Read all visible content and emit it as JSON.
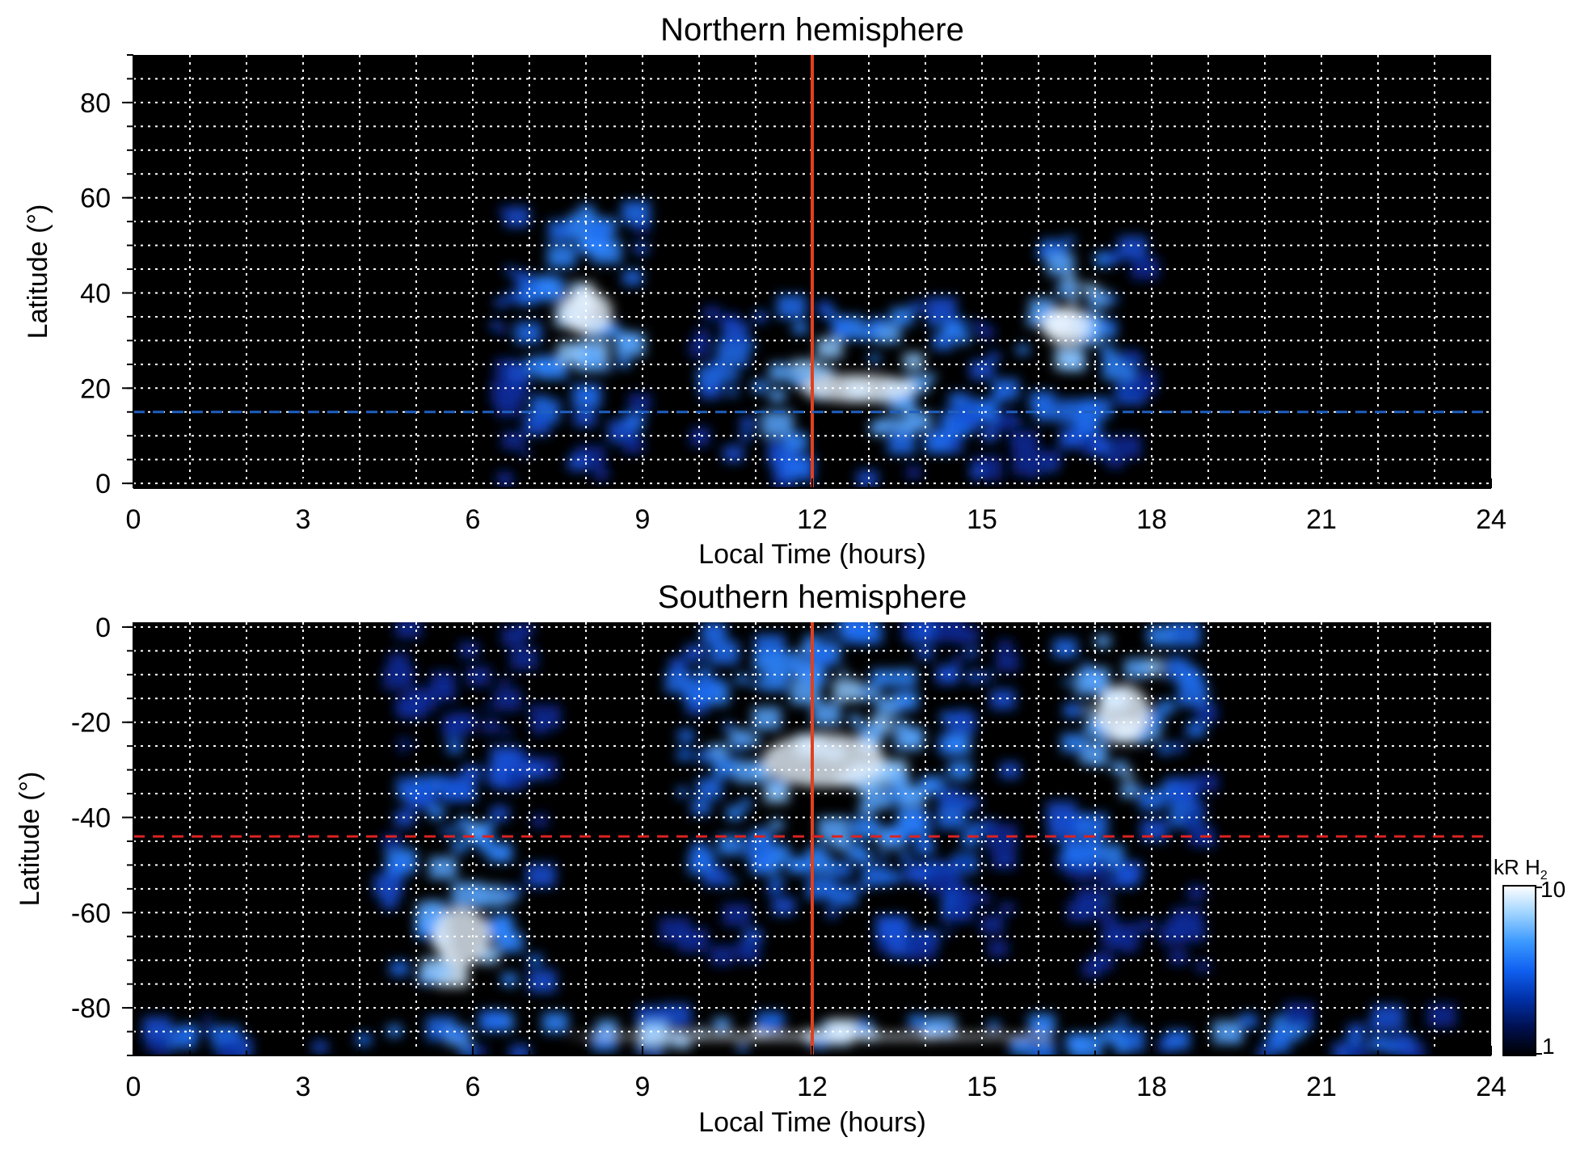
{
  "chart_data": [
    {
      "type": "heatmap",
      "title": "Northern hemisphere",
      "xlabel": "Local Time (hours)",
      "ylabel": "Latitude (°)",
      "xlim": [
        0,
        24
      ],
      "ylim": [
        -1,
        90
      ],
      "xticks": [
        "0",
        "3",
        "6",
        "9",
        "12",
        "15",
        "18",
        "21",
        "24"
      ],
      "yticks": [
        "0",
        "20",
        "40",
        "60",
        "80"
      ],
      "grid": true,
      "reference_lines": [
        {
          "orientation": "vertical",
          "value": 12,
          "color": "#e2401c",
          "style": "solid"
        },
        {
          "orientation": "horizontal",
          "value": 15,
          "color": "#1f5fbf",
          "style": "dashed"
        }
      ],
      "emission_regions": [
        {
          "x_range": [
            6.4,
            9.0
          ],
          "y_range": [
            0,
            57
          ],
          "peak": {
            "x": 8.0,
            "y": 36
          }
        },
        {
          "x_range": [
            10.0,
            15.6
          ],
          "y_range": [
            0,
            37
          ],
          "peak": {
            "x": 12.8,
            "y": 20
          }
        },
        {
          "x_range": [
            15.7,
            18.0
          ],
          "y_range": [
            0,
            51
          ],
          "peak": {
            "x": 16.5,
            "y": 33
          }
        }
      ]
    },
    {
      "type": "heatmap",
      "title": "Southern hemisphere",
      "xlabel": "Local Time (hours)",
      "ylabel": "Latitude (°)",
      "xlim": [
        0,
        24
      ],
      "ylim": [
        -90,
        1
      ],
      "xticks": [
        "0",
        "3",
        "6",
        "9",
        "12",
        "15",
        "18",
        "21",
        "24"
      ],
      "yticks": [
        "0",
        "-20",
        "-40",
        "-60",
        "-80"
      ],
      "grid": true,
      "reference_lines": [
        {
          "orientation": "vertical",
          "value": 12,
          "color": "#e2401c",
          "style": "solid"
        },
        {
          "orientation": "horizontal",
          "value": -44,
          "color": "#dd2222",
          "style": "dashed"
        }
      ],
      "emission_regions": [
        {
          "x_range": [
            4.5,
            7.3
          ],
          "y_range": [
            -75,
            0
          ],
          "peak": {
            "x": 5.8,
            "y": -65
          }
        },
        {
          "x_range": [
            9.5,
            15.5
          ],
          "y_range": [
            -70,
            0
          ],
          "peak": {
            "x": 12.2,
            "y": -28
          }
        },
        {
          "x_range": [
            16.4,
            19.0
          ],
          "y_range": [
            -73,
            0
          ],
          "peak": {
            "x": 17.5,
            "y": -18
          }
        },
        {
          "x_range": [
            0,
            24
          ],
          "y_range": [
            -90,
            -82
          ],
          "peak": {
            "x": 12,
            "y": -86
          }
        }
      ]
    }
  ],
  "colorbar": {
    "label": "kR H",
    "label_subscript": "2",
    "scale": "log",
    "ticks": [
      "10",
      "1"
    ],
    "range": [
      1,
      10
    ],
    "colors": [
      "#000000",
      "#001050",
      "#0030a8",
      "#1060f0",
      "#3a98ff",
      "#9cd2ff",
      "#ffffff"
    ]
  }
}
